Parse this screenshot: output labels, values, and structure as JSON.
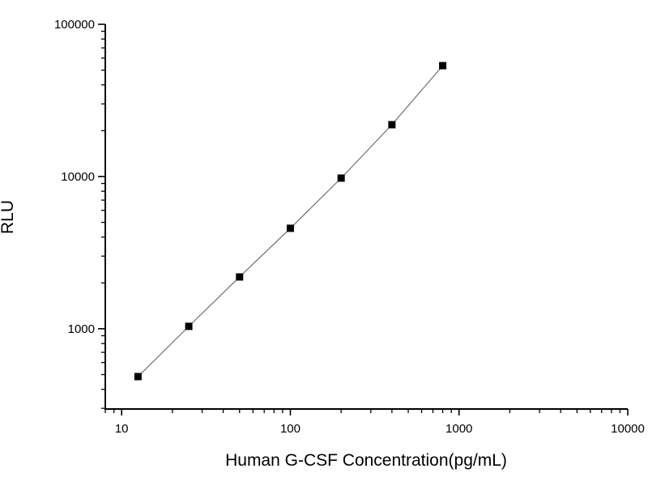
{
  "chart_data": {
    "type": "scatter",
    "title": "",
    "xlabel": "Human G-CSF Concentration(pg/mL)",
    "ylabel": "RLU",
    "xscale": "log",
    "yscale": "log",
    "xlim": [
      8,
      10000
    ],
    "ylim": [
      297,
      100000
    ],
    "xticks": [
      10,
      100,
      1000,
      10000
    ],
    "xtick_labels": [
      "10",
      "100",
      "1000",
      "10000"
    ],
    "yticks": [
      1000,
      10000,
      100000
    ],
    "ytick_labels": [
      "1000",
      "10000",
      "100000"
    ],
    "grid": false,
    "legend": "none",
    "series": [
      {
        "x": [
          12.5,
          25,
          50,
          100,
          200,
          400,
          800
        ],
        "y": [
          485,
          1037,
          2190,
          4570,
          9760,
          21900,
          53500
        ],
        "marker": "square",
        "line": "connected",
        "color": "#000000",
        "line_color": "#555555"
      }
    ]
  }
}
